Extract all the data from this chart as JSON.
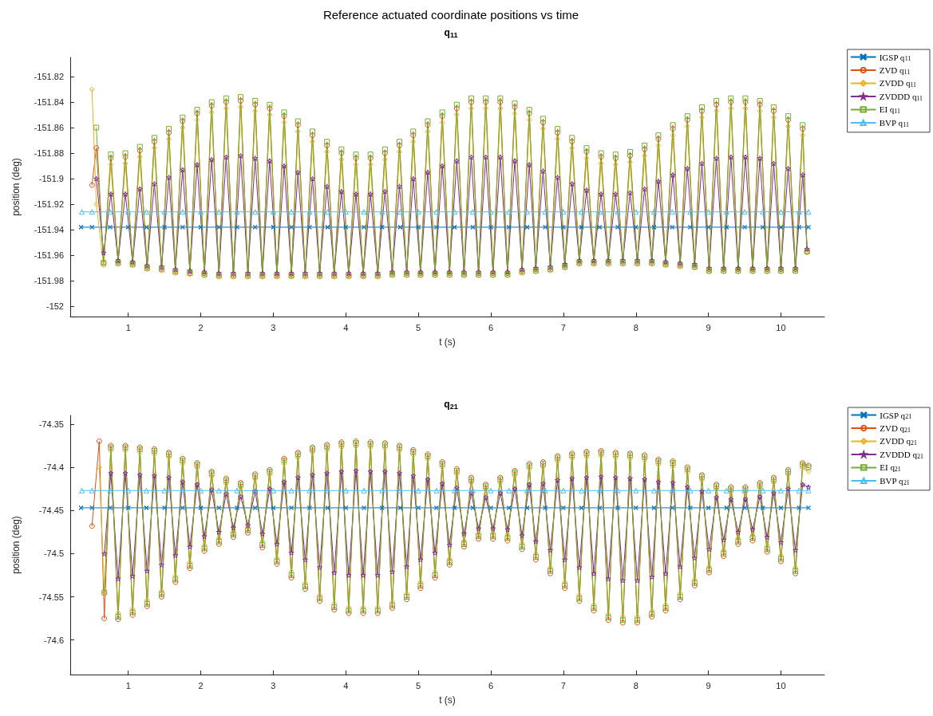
{
  "chart_data": [
    {
      "type": "line",
      "title": "Reference actuated coordinate positions vs time",
      "subtitle": "q$_{11}$",
      "xlabel": "t (s)",
      "ylabel": "position (deg)",
      "legend": "top right",
      "xlim": [
        0.2,
        10.6
      ],
      "ylim": [
        -152.008,
        -151.805
      ],
      "xticks": [
        1,
        2,
        3,
        4,
        5,
        6,
        7,
        8,
        9,
        10
      ],
      "yticks": [
        -152,
        -151.98,
        -151.96,
        -151.94,
        -151.92,
        -151.9,
        -151.88,
        -151.86,
        -151.84,
        -151.82
      ],
      "x": [
        0.5,
        0.56,
        0.66,
        0.76,
        0.86,
        0.96,
        1.06,
        1.16,
        1.26,
        1.36,
        1.46,
        1.56,
        1.65,
        1.75,
        1.85,
        1.95,
        2.05,
        2.15,
        2.25,
        2.35,
        2.45,
        2.55,
        2.65,
        2.75,
        2.85,
        2.95,
        3.05,
        3.15,
        3.25,
        3.34,
        3.44,
        3.54,
        3.64,
        3.74,
        3.84,
        3.94,
        4.04,
        4.14,
        4.24,
        4.34,
        4.44,
        4.54,
        4.64,
        4.74,
        4.84,
        4.93,
        5.03,
        5.13,
        5.23,
        5.33,
        5.43,
        5.53,
        5.63,
        5.73,
        5.83,
        5.93,
        6.03,
        6.13,
        6.23,
        6.33,
        6.43,
        6.53,
        6.62,
        6.72,
        6.82,
        6.92,
        7.02,
        7.12,
        7.22,
        7.32,
        7.42,
        7.52,
        7.62,
        7.72,
        7.82,
        7.92,
        8.02,
        8.12,
        8.22,
        8.31,
        8.41,
        8.51,
        8.61,
        8.71,
        8.81,
        8.91,
        9.01,
        9.11,
        9.21,
        9.31,
        9.41,
        9.51,
        9.61,
        9.71,
        9.81,
        9.9,
        10,
        10.1,
        10.2,
        10.3,
        10.36
      ],
      "series": [
        {
          "name": "IGSP q$_{11}$",
          "color": "#0072bd",
          "marker": "cross",
          "x": [
            0.35,
            0.5,
            0.75,
            1,
            1.25,
            1.5,
            1.75,
            2,
            2.25,
            2.5,
            2.75,
            3,
            3.25,
            3.5,
            3.75,
            4,
            4.25,
            4.5,
            4.75,
            5,
            5.25,
            5.5,
            5.75,
            6,
            6.25,
            6.5,
            6.75,
            7,
            7.25,
            7.5,
            7.75,
            8,
            8.25,
            8.5,
            8.75,
            9,
            9.25,
            9.5,
            9.75,
            10,
            10.25,
            10.38
          ],
          "values": [
            -151.938,
            -151.938,
            -151.938,
            -151.938,
            -151.938,
            -151.938,
            -151.938,
            -151.938,
            -151.938,
            -151.938,
            -151.938,
            -151.938,
            -151.938,
            -151.938,
            -151.938,
            -151.938,
            -151.938,
            -151.938,
            -151.938,
            -151.938,
            -151.938,
            -151.938,
            -151.938,
            -151.938,
            -151.938,
            -151.938,
            -151.938,
            -151.938,
            -151.938,
            -151.938,
            -151.938,
            -151.938,
            -151.938,
            -151.938,
            -151.938,
            -151.938,
            -151.938,
            -151.938,
            -151.938,
            -151.938,
            -151.938,
            -151.938
          ]
        },
        {
          "name": "ZVD q$_{11}$",
          "color": "#d95319",
          "marker": "circle",
          "values": [
            -151.905,
            -151.876,
            -151.966,
            -151.884,
            -151.965,
            -151.883,
            -151.966,
            -151.878,
            -151.969,
            -151.871,
            -151.97,
            -151.864,
            -151.972,
            -151.855,
            -151.973,
            -151.849,
            -151.974,
            -151.843,
            -151.975,
            -151.84,
            -151.975,
            -151.839,
            -151.975,
            -151.842,
            -151.975,
            -151.845,
            -151.975,
            -151.851,
            -151.975,
            -151.858,
            -151.975,
            -151.866,
            -151.975,
            -151.874,
            -151.975,
            -151.88,
            -151.975,
            -151.884,
            -151.975,
            -151.884,
            -151.975,
            -151.88,
            -151.974,
            -151.874,
            -151.974,
            -151.866,
            -151.974,
            -151.858,
            -151.974,
            -151.851,
            -151.974,
            -151.845,
            -151.974,
            -151.84,
            -151.974,
            -151.84,
            -151.974,
            -151.84,
            -151.974,
            -151.844,
            -151.972,
            -151.849,
            -151.971,
            -151.856,
            -151.97,
            -151.864,
            -151.968,
            -151.871,
            -151.965,
            -151.879,
            -151.965,
            -151.883,
            -151.965,
            -151.884,
            -151.965,
            -151.882,
            -151.965,
            -151.877,
            -151.965,
            -151.869,
            -151.966,
            -151.861,
            -151.967,
            -151.854,
            -151.968,
            -151.847,
            -151.971,
            -151.842,
            -151.971,
            -151.84,
            -151.971,
            -151.84,
            -151.971,
            -151.842,
            -151.971,
            -151.847,
            -151.971,
            -151.854,
            -151.971,
            -151.861,
            -151.957
          ]
        },
        {
          "name": "ZVDD q$_{11}$",
          "color": "#edb120",
          "marker": "diamond",
          "values": [
            -151.83,
            -151.92,
            -151.968,
            -151.889,
            -151.967,
            -151.888,
            -151.968,
            -151.883,
            -151.971,
            -151.876,
            -151.972,
            -151.869,
            -151.974,
            -151.86,
            -151.975,
            -151.854,
            -151.976,
            -151.848,
            -151.977,
            -151.845,
            -151.977,
            -151.844,
            -151.977,
            -151.847,
            -151.977,
            -151.85,
            -151.977,
            -151.856,
            -151.977,
            -151.863,
            -151.977,
            -151.871,
            -151.977,
            -151.879,
            -151.977,
            -151.885,
            -151.977,
            -151.889,
            -151.977,
            -151.889,
            -151.977,
            -151.885,
            -151.976,
            -151.879,
            -151.976,
            -151.871,
            -151.976,
            -151.863,
            -151.976,
            -151.856,
            -151.976,
            -151.85,
            -151.976,
            -151.845,
            -151.976,
            -151.845,
            -151.976,
            -151.845,
            -151.976,
            -151.849,
            -151.974,
            -151.854,
            -151.973,
            -151.861,
            -151.972,
            -151.869,
            -151.97,
            -151.876,
            -151.967,
            -151.884,
            -151.967,
            -151.888,
            -151.967,
            -151.889,
            -151.967,
            -151.887,
            -151.967,
            -151.882,
            -151.967,
            -151.874,
            -151.968,
            -151.866,
            -151.969,
            -151.859,
            -151.97,
            -151.852,
            -151.973,
            -151.847,
            -151.973,
            -151.845,
            -151.973,
            -151.845,
            -151.973,
            -151.847,
            -151.973,
            -151.852,
            -151.973,
            -151.859,
            -151.973,
            -151.866,
            -151.958
          ]
        },
        {
          "name": "ZVDDD q$_{11}$",
          "color": "#7e2f8e",
          "marker": "star",
          "values": [
            null,
            -151.9,
            -151.958,
            -151.912,
            -151.964,
            -151.912,
            -151.965,
            -151.908,
            -151.968,
            -151.904,
            -151.969,
            -151.899,
            -151.971,
            -151.893,
            -151.972,
            -151.889,
            -151.973,
            -151.885,
            -151.974,
            -151.883,
            -151.974,
            -151.882,
            -151.974,
            -151.884,
            -151.974,
            -151.886,
            -151.974,
            -151.89,
            -151.974,
            -151.895,
            -151.974,
            -151.9,
            -151.974,
            -151.906,
            -151.974,
            -151.91,
            -151.974,
            -151.912,
            -151.974,
            -151.912,
            -151.974,
            -151.91,
            -151.973,
            -151.906,
            -151.973,
            -151.9,
            -151.973,
            -151.895,
            -151.973,
            -151.89,
            -151.973,
            -151.886,
            -151.973,
            -151.883,
            -151.973,
            -151.883,
            -151.973,
            -151.883,
            -151.973,
            -151.886,
            -151.971,
            -151.889,
            -151.97,
            -151.894,
            -151.969,
            -151.899,
            -151.967,
            -151.904,
            -151.964,
            -151.909,
            -151.964,
            -151.912,
            -151.964,
            -151.912,
            -151.964,
            -151.911,
            -151.964,
            -151.908,
            -151.964,
            -151.902,
            -151.965,
            -151.897,
            -151.966,
            -151.892,
            -151.967,
            -151.888,
            -151.97,
            -151.884,
            -151.97,
            -151.883,
            -151.97,
            -151.883,
            -151.97,
            -151.884,
            -151.97,
            -151.888,
            -151.97,
            -151.892,
            -151.97,
            -151.897,
            -151.955
          ]
        },
        {
          "name": "EI q$_{11}$",
          "color": "#77ac30",
          "marker": "square",
          "values": [
            null,
            -151.86,
            -151.966,
            -151.881,
            -151.966,
            -151.88,
            -151.967,
            -151.875,
            -151.97,
            -151.868,
            -151.971,
            -151.861,
            -151.973,
            -151.852,
            -151.974,
            -151.846,
            -151.975,
            -151.84,
            -151.976,
            -151.837,
            -151.976,
            -151.836,
            -151.976,
            -151.839,
            -151.976,
            -151.842,
            -151.976,
            -151.848,
            -151.976,
            -151.855,
            -151.976,
            -151.863,
            -151.976,
            -151.871,
            -151.976,
            -151.877,
            -151.976,
            -151.881,
            -151.976,
            -151.881,
            -151.976,
            -151.877,
            -151.975,
            -151.871,
            -151.975,
            -151.863,
            -151.975,
            -151.855,
            -151.975,
            -151.848,
            -151.975,
            -151.842,
            -151.975,
            -151.837,
            -151.975,
            -151.837,
            -151.975,
            -151.837,
            -151.975,
            -151.841,
            -151.973,
            -151.846,
            -151.972,
            -151.853,
            -151.971,
            -151.861,
            -151.969,
            -151.868,
            -151.966,
            -151.876,
            -151.966,
            -151.88,
            -151.966,
            -151.881,
            -151.966,
            -151.879,
            -151.966,
            -151.874,
            -151.966,
            -151.866,
            -151.967,
            -151.858,
            -151.968,
            -151.851,
            -151.969,
            -151.844,
            -151.972,
            -151.839,
            -151.972,
            -151.837,
            -151.972,
            -151.837,
            -151.972,
            -151.839,
            -151.972,
            -151.844,
            -151.972,
            -151.851,
            -151.972,
            -151.858,
            -151.957
          ]
        },
        {
          "name": "BVP q$_{11}$",
          "color": "#4dbeee",
          "marker": "triangle",
          "x": [
            0.36,
            0.5,
            0.75,
            1,
            1.25,
            1.5,
            1.75,
            2,
            2.25,
            2.5,
            2.75,
            3,
            3.25,
            3.5,
            3.75,
            4,
            4.25,
            4.5,
            4.75,
            5,
            5.25,
            5.5,
            5.75,
            6,
            6.25,
            6.5,
            6.75,
            7,
            7.25,
            7.5,
            7.75,
            8,
            8.25,
            8.5,
            8.75,
            9,
            9.25,
            9.5,
            9.75,
            10,
            10.25,
            10.38
          ],
          "values": [
            -151.926,
            -151.926,
            -151.926,
            -151.926,
            -151.926,
            -151.926,
            -151.926,
            -151.926,
            -151.926,
            -151.926,
            -151.926,
            -151.926,
            -151.926,
            -151.926,
            -151.926,
            -151.926,
            -151.926,
            -151.926,
            -151.926,
            -151.926,
            -151.926,
            -151.926,
            -151.926,
            -151.926,
            -151.926,
            -151.926,
            -151.926,
            -151.926,
            -151.926,
            -151.926,
            -151.926,
            -151.926,
            -151.926,
            -151.926,
            -151.926,
            -151.926,
            -151.926,
            -151.926,
            -151.926,
            -151.926,
            -151.926,
            -151.926
          ]
        }
      ]
    },
    {
      "type": "line",
      "title": "q$_{21}$",
      "xlabel": "t (s)",
      "ylabel": "position (deg)",
      "legend": "top right",
      "xlim": [
        0.2,
        10.6
      ],
      "ylim": [
        -74.64,
        -74.34
      ],
      "xticks": [
        1,
        2,
        3,
        4,
        5,
        6,
        7,
        8,
        9,
        10
      ],
      "yticks": [
        -74.6,
        -74.55,
        -74.5,
        -74.45,
        -74.4,
        -74.35
      ],
      "x": [
        0.5,
        0.6,
        0.67,
        0.76,
        0.86,
        0.96,
        1.06,
        1.16,
        1.26,
        1.36,
        1.46,
        1.56,
        1.65,
        1.75,
        1.85,
        1.95,
        2.05,
        2.15,
        2.25,
        2.35,
        2.45,
        2.55,
        2.65,
        2.75,
        2.85,
        2.95,
        3.05,
        3.15,
        3.25,
        3.34,
        3.44,
        3.54,
        3.64,
        3.74,
        3.84,
        3.94,
        4.04,
        4.14,
        4.24,
        4.34,
        4.44,
        4.54,
        4.64,
        4.74,
        4.84,
        4.93,
        5.03,
        5.13,
        5.23,
        5.33,
        5.43,
        5.53,
        5.63,
        5.73,
        5.83,
        5.93,
        6.03,
        6.13,
        6.23,
        6.33,
        6.43,
        6.53,
        6.62,
        6.72,
        6.82,
        6.92,
        7.02,
        7.12,
        7.22,
        7.32,
        7.42,
        7.52,
        7.62,
        7.72,
        7.82,
        7.92,
        8.02,
        8.12,
        8.22,
        8.31,
        8.41,
        8.51,
        8.61,
        8.71,
        8.81,
        8.91,
        9.01,
        9.11,
        9.21,
        9.31,
        9.41,
        9.51,
        9.61,
        9.71,
        9.81,
        9.9,
        10,
        10.1,
        10.2,
        10.3,
        10.38
      ],
      "series": [
        {
          "name": "IGSP q$_{21}$",
          "color": "#0072bd",
          "marker": "cross",
          "x": [
            0.35,
            0.5,
            0.75,
            1,
            1.25,
            1.5,
            1.75,
            2,
            2.25,
            2.5,
            2.75,
            3,
            3.25,
            3.5,
            3.75,
            4,
            4.25,
            4.5,
            4.75,
            5,
            5.25,
            5.5,
            5.75,
            6,
            6.25,
            6.5,
            6.75,
            7,
            7.25,
            7.5,
            7.75,
            8,
            8.25,
            8.5,
            8.75,
            9,
            9.25,
            9.5,
            9.75,
            10,
            10.25,
            10.38
          ],
          "values": [
            -74.447,
            -74.447,
            -74.447,
            -74.447,
            -74.447,
            -74.447,
            -74.447,
            -74.447,
            -74.447,
            -74.447,
            -74.447,
            -74.447,
            -74.447,
            -74.447,
            -74.447,
            -74.447,
            -74.447,
            -74.447,
            -74.447,
            -74.447,
            -74.447,
            -74.447,
            -74.447,
            -74.447,
            -74.447,
            -74.447,
            -74.447,
            -74.447,
            -74.447,
            -74.447,
            -74.447,
            -74.447,
            -74.447,
            -74.447,
            -74.447,
            -74.447,
            -74.447,
            -74.447,
            -74.447,
            -74.447,
            -74.447,
            -74.447
          ]
        },
        {
          "name": "ZVD q$_{21}$",
          "color": "#d95319",
          "marker": "circle",
          "values": [
            -74.468,
            -74.37,
            -74.575,
            -74.375,
            -74.576,
            -74.375,
            -74.571,
            -74.377,
            -74.561,
            -74.379,
            -74.55,
            -74.383,
            -74.533,
            -74.39,
            -74.517,
            -74.395,
            -74.497,
            -74.405,
            -74.489,
            -74.413,
            -74.481,
            -74.418,
            -74.476,
            -74.408,
            -74.493,
            -74.403,
            -74.512,
            -74.39,
            -74.528,
            -74.383,
            -74.541,
            -74.377,
            -74.555,
            -74.374,
            -74.565,
            -74.371,
            -74.569,
            -74.37,
            -74.569,
            -74.371,
            -74.569,
            -74.372,
            -74.563,
            -74.375,
            -74.553,
            -74.38,
            -74.54,
            -74.385,
            -74.528,
            -74.394,
            -74.513,
            -74.402,
            -74.492,
            -74.412,
            -74.483,
            -74.42,
            -74.483,
            -74.412,
            -74.485,
            -74.404,
            -74.495,
            -74.396,
            -74.507,
            -74.394,
            -74.523,
            -74.387,
            -74.54,
            -74.384,
            -74.555,
            -74.382,
            -74.566,
            -74.381,
            -74.577,
            -74.383,
            -74.58,
            -74.384,
            -74.58,
            -74.386,
            -74.573,
            -74.391,
            -74.566,
            -74.393,
            -74.553,
            -74.4,
            -74.537,
            -74.409,
            -74.522,
            -74.42,
            -74.503,
            -74.423,
            -74.489,
            -74.423,
            -74.485,
            -74.418,
            -74.498,
            -74.412,
            -74.509,
            -74.403,
            -74.523,
            -74.395,
            -74.398
          ]
        },
        {
          "name": "ZVDD q$_{21}$",
          "color": "#edb120",
          "marker": "diamond",
          "values": [
            null,
            -74.4,
            -74.545,
            -74.381,
            -74.569,
            -74.381,
            -74.564,
            -74.383,
            -74.554,
            -74.385,
            -74.543,
            -74.389,
            -74.526,
            -74.396,
            -74.51,
            -74.401,
            -74.49,
            -74.411,
            -74.482,
            -74.419,
            -74.474,
            -74.424,
            -74.469,
            -74.414,
            -74.486,
            -74.409,
            -74.505,
            -74.396,
            -74.521,
            -74.389,
            -74.534,
            -74.383,
            -74.548,
            -74.38,
            -74.558,
            -74.377,
            -74.562,
            -74.376,
            -74.562,
            -74.377,
            -74.562,
            -74.378,
            -74.556,
            -74.381,
            -74.546,
            -74.386,
            -74.533,
            -74.391,
            -74.521,
            -74.4,
            -74.506,
            -74.408,
            -74.485,
            -74.418,
            -74.476,
            -74.426,
            -74.476,
            -74.418,
            -74.478,
            -74.41,
            -74.488,
            -74.402,
            -74.5,
            -74.4,
            -74.516,
            -74.393,
            -74.533,
            -74.39,
            -74.548,
            -74.388,
            -74.559,
            -74.387,
            -74.57,
            -74.389,
            -74.573,
            -74.39,
            -74.573,
            -74.392,
            -74.566,
            -74.397,
            -74.559,
            -74.399,
            -74.546,
            -74.406,
            -74.53,
            -74.415,
            -74.515,
            -74.426,
            -74.496,
            -74.429,
            -74.482,
            -74.429,
            -74.478,
            -74.424,
            -74.491,
            -74.418,
            -74.502,
            -74.409,
            -74.516,
            -74.401,
            -74.405
          ]
        },
        {
          "name": "ZVDDD q$_{21}$",
          "color": "#7e2f8e",
          "marker": "star",
          "values": [
            null,
            null,
            -74.5,
            -74.407,
            -74.529,
            -74.407,
            -74.526,
            -74.409,
            -74.52,
            -74.41,
            -74.513,
            -74.412,
            -74.502,
            -74.417,
            -74.492,
            -74.42,
            -74.48,
            -74.426,
            -74.475,
            -74.431,
            -74.47,
            -74.434,
            -74.467,
            -74.428,
            -74.477,
            -74.425,
            -74.489,
            -74.417,
            -74.499,
            -74.412,
            -74.507,
            -74.409,
            -74.516,
            -74.407,
            -74.522,
            -74.405,
            -74.525,
            -74.404,
            -74.525,
            -74.405,
            -74.525,
            -74.405,
            -74.521,
            -74.407,
            -74.515,
            -74.41,
            -74.507,
            -74.414,
            -74.499,
            -74.419,
            -74.49,
            -74.424,
            -74.477,
            -74.43,
            -74.471,
            -74.435,
            -74.471,
            -74.43,
            -74.472,
            -74.425,
            -74.479,
            -74.42,
            -74.486,
            -74.419,
            -74.496,
            -74.415,
            -74.507,
            -74.413,
            -74.516,
            -74.412,
            -74.523,
            -74.411,
            -74.529,
            -74.412,
            -74.531,
            -74.413,
            -74.531,
            -74.414,
            -74.527,
            -74.417,
            -74.523,
            -74.418,
            -74.515,
            -74.423,
            -74.505,
            -74.428,
            -74.495,
            -74.435,
            -74.484,
            -74.437,
            -74.475,
            -74.437,
            -74.472,
            -74.434,
            -74.481,
            -74.43,
            -74.487,
            -74.425,
            -74.496,
            -74.42,
            -74.423
          ]
        },
        {
          "name": "EI q$_{21}$",
          "color": "#77ac30",
          "marker": "square",
          "values": [
            null,
            null,
            -74.545,
            -74.377,
            -74.573,
            -74.377,
            -74.568,
            -74.379,
            -74.558,
            -74.381,
            -74.547,
            -74.385,
            -74.53,
            -74.392,
            -74.514,
            -74.397,
            -74.494,
            -74.407,
            -74.486,
            -74.415,
            -74.478,
            -74.42,
            -74.473,
            -74.41,
            -74.49,
            -74.405,
            -74.509,
            -74.392,
            -74.525,
            -74.385,
            -74.538,
            -74.379,
            -74.552,
            -74.376,
            -74.562,
            -74.373,
            -74.566,
            -74.372,
            -74.566,
            -74.373,
            -74.566,
            -74.374,
            -74.56,
            -74.377,
            -74.55,
            -74.382,
            -74.537,
            -74.387,
            -74.525,
            -74.396,
            -74.51,
            -74.404,
            -74.489,
            -74.414,
            -74.48,
            -74.422,
            -74.48,
            -74.414,
            -74.482,
            -74.406,
            -74.492,
            -74.398,
            -74.504,
            -74.396,
            -74.52,
            -74.389,
            -74.537,
            -74.386,
            -74.552,
            -74.384,
            -74.563,
            -74.383,
            -74.574,
            -74.385,
            -74.577,
            -74.386,
            -74.577,
            -74.388,
            -74.57,
            -74.393,
            -74.563,
            -74.395,
            -74.55,
            -74.402,
            -74.534,
            -74.411,
            -74.519,
            -74.422,
            -74.5,
            -74.425,
            -74.486,
            -74.425,
            -74.482,
            -74.42,
            -74.495,
            -74.414,
            -74.506,
            -74.405,
            -74.52,
            -74.397,
            -74.4
          ]
        },
        {
          "name": "BVP q$_{21}$",
          "color": "#4dbeee",
          "marker": "triangle",
          "x": [
            0.36,
            0.5,
            0.75,
            1,
            1.25,
            1.5,
            1.75,
            2,
            2.25,
            2.5,
            2.75,
            3,
            3.25,
            3.5,
            3.75,
            4,
            4.25,
            4.5,
            4.75,
            5,
            5.25,
            5.5,
            5.75,
            6,
            6.25,
            6.5,
            6.75,
            7,
            7.25,
            7.5,
            7.75,
            8,
            8.25,
            8.5,
            8.75,
            9,
            9.25,
            9.5,
            9.75,
            10,
            10.25,
            10.38
          ],
          "values": [
            -74.427,
            -74.427,
            -74.427,
            -74.427,
            -74.427,
            -74.427,
            -74.427,
            -74.427,
            -74.427,
            -74.427,
            -74.427,
            -74.427,
            -74.427,
            -74.427,
            -74.427,
            -74.427,
            -74.427,
            -74.427,
            -74.427,
            -74.427,
            -74.427,
            -74.427,
            -74.427,
            -74.427,
            -74.427,
            -74.427,
            -74.427,
            -74.427,
            -74.427,
            -74.427,
            -74.427,
            -74.427,
            -74.427,
            -74.427,
            -74.427,
            -74.427,
            -74.427,
            -74.427,
            -74.427,
            -74.427,
            -74.427,
            -74.427
          ]
        }
      ]
    }
  ]
}
